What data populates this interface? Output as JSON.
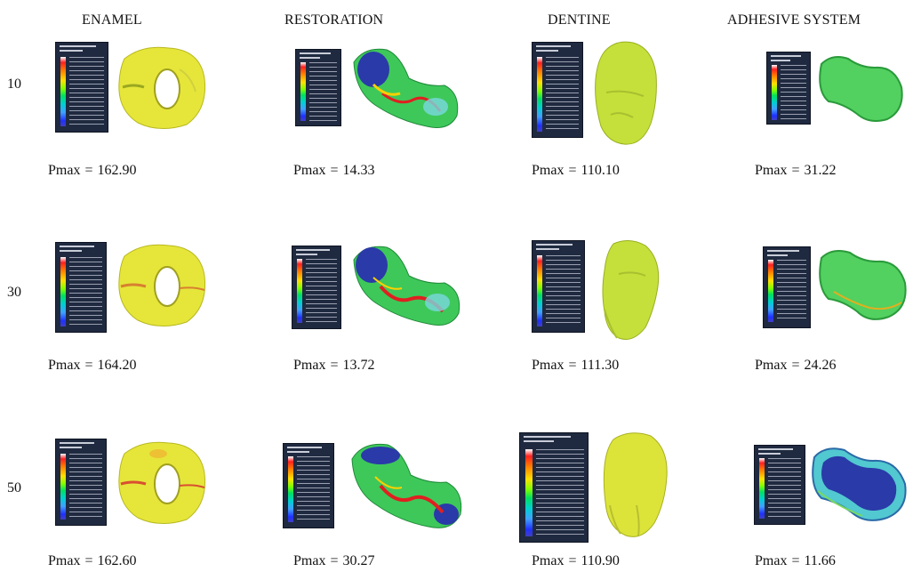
{
  "headers": [
    "ENAMEL",
    "RESTORATION",
    "DENTINE",
    "ADHESIVE SYSTEM"
  ],
  "rows": [
    {
      "label": "10",
      "pmax": [
        "162.90",
        "14.33",
        "110.10",
        "31.22"
      ]
    },
    {
      "label": "30",
      "pmax": [
        "164.20",
        "13.72",
        "111.30",
        "24.26"
      ]
    },
    {
      "label": "50",
      "pmax": [
        "162.60",
        "30.27",
        "110.90",
        "11.66"
      ]
    }
  ],
  "pmax_prefix": "Pmax",
  "pmax_equals": "=",
  "colors": {
    "enamel": "#e6e63a",
    "dentine": "#c5e03a",
    "restoration": "#3ec85a",
    "adhesive": "#52d060",
    "high_stress": "#e02020",
    "low_stress": "#2a3aa8",
    "legend_bg": "#1f2a40"
  }
}
